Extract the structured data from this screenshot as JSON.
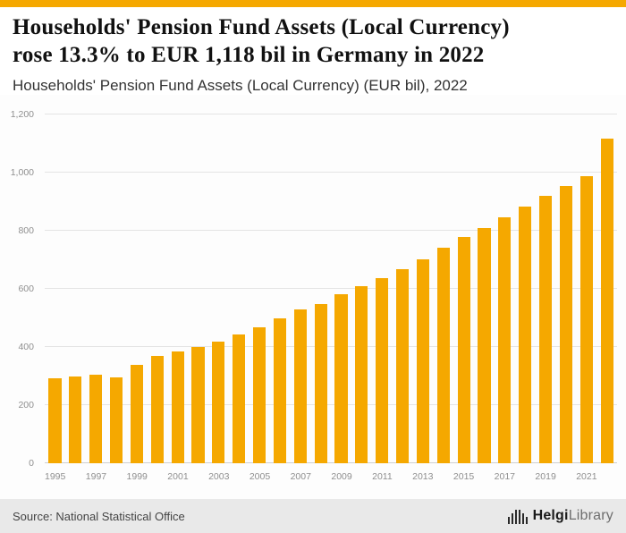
{
  "colors": {
    "accent": "#F5A800",
    "bar": "#F5A800",
    "grid": "#E4E4E4",
    "baseline": "#CFCFCF",
    "axis_text": "#8F8F8F",
    "footer_bg": "#E9E9E9",
    "title_text": "#111111",
    "subtitle_text": "#333333"
  },
  "header": {
    "title_line1": "Households' Pension Fund Assets (Local Currency)",
    "title_line2": "rose 13.3% to EUR 1,118 bil in Germany in 2022",
    "subtitle": "Households' Pension Fund Assets (Local Currency) (EUR bil), 2022"
  },
  "chart_data": {
    "type": "bar",
    "title": "Households' Pension Fund Assets (Local Currency) rose 13.3% to EUR 1,118 bil in Germany in 2022",
    "subtitle": "Households' Pension Fund Assets (Local Currency) (EUR bil), 2022",
    "unit": "EUR bil",
    "categories": [
      1995,
      1996,
      1997,
      1998,
      1999,
      2000,
      2001,
      2002,
      2003,
      2004,
      2005,
      2006,
      2007,
      2008,
      2009,
      2010,
      2011,
      2012,
      2013,
      2014,
      2015,
      2016,
      2017,
      2018,
      2019,
      2020,
      2021,
      2022
    ],
    "values": [
      293,
      298,
      305,
      296,
      338,
      368,
      385,
      400,
      420,
      442,
      467,
      500,
      530,
      548,
      583,
      610,
      637,
      668,
      702,
      742,
      778,
      810,
      845,
      882,
      920,
      955,
      987,
      1118
    ],
    "ylim": [
      0,
      1200
    ],
    "yticks": [
      0,
      200,
      400,
      600,
      800,
      1000,
      1200
    ],
    "ytick_labels": [
      "0",
      "200",
      "400",
      "600",
      "800",
      "1,000",
      "1,200"
    ],
    "xtick_labels": [
      "1995",
      "1997",
      "1999",
      "2001",
      "2003",
      "2005",
      "2007",
      "2009",
      "2011",
      "2013",
      "2015",
      "2017",
      "2019",
      "2021"
    ],
    "grid": true,
    "legend": false,
    "bar_color": "#F5A800"
  },
  "footer": {
    "source": "Source: National Statistical Office",
    "logo": {
      "bold": "Helgi",
      "light": "Library"
    }
  }
}
